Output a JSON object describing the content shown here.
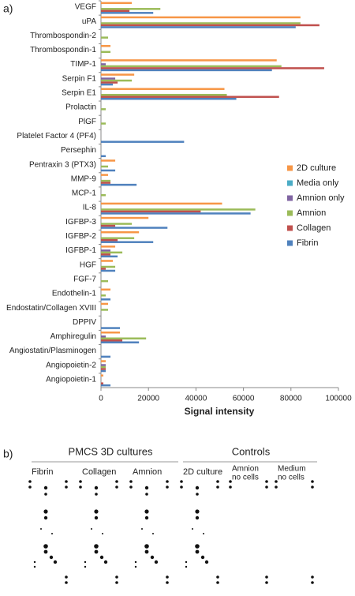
{
  "chart_data": {
    "type": "bar",
    "orientation": "horizontal",
    "panel_label": "a)",
    "x_label": "Signal intensity",
    "categories": [
      "VEGF",
      "uPA",
      "Thrombospondin-2",
      "Thrombospondin-1",
      "TIMP-1",
      "Serpin F1",
      "Serpin E1",
      "Prolactin",
      "PlGF",
      "Platelet Factor 4 (PF4)",
      "Persephin",
      "Pentraxin 3 (PTX3)",
      "MMP-9",
      "MCP-1",
      "IL-8",
      "IGFBP-3",
      "IGFBP-2",
      "IGFBP-1",
      "HGF",
      "FGF-7",
      "Endothelin-1",
      "Endostatin/Collagen XVIII",
      "DPPIV",
      "Amphiregulin",
      "Angiostatin/Plasminogen",
      "Angiopoietin-2",
      "Angiopoietin-1"
    ],
    "series": [
      {
        "name": "2D culture",
        "color": "#f79646",
        "values": [
          13000,
          84000,
          0,
          4000,
          74000,
          14000,
          52000,
          0,
          0,
          0,
          0,
          6000,
          3000,
          0,
          51000,
          20000,
          16000,
          6000,
          5000,
          0,
          4000,
          3000,
          0,
          8000,
          0,
          2000,
          1000
        ]
      },
      {
        "name": "Media only",
        "color": "#4bacc6",
        "values": [
          0,
          0,
          0,
          0,
          0,
          0,
          0,
          0,
          0,
          0,
          0,
          0,
          0,
          0,
          0,
          0,
          0,
          0,
          0,
          0,
          0,
          0,
          0,
          0,
          0,
          0,
          0
        ]
      },
      {
        "name": "Amnion only",
        "color": "#8064a2",
        "values": [
          0,
          0,
          0,
          0,
          2000,
          6000,
          0,
          0,
          0,
          0,
          0,
          0,
          0,
          0,
          0,
          0,
          0,
          4000,
          0,
          0,
          0,
          0,
          0,
          2000,
          0,
          2000,
          0
        ]
      },
      {
        "name": "Amnion",
        "color": "#9bbb59",
        "values": [
          25000,
          84000,
          3000,
          4000,
          76000,
          13000,
          53000,
          2000,
          2000,
          0,
          0,
          3000,
          4000,
          2000,
          65000,
          13000,
          14000,
          9000,
          6000,
          3000,
          2000,
          3000,
          0,
          19000,
          0,
          2000,
          0
        ]
      },
      {
        "name": "Collagen",
        "color": "#c0504d",
        "values": [
          12000,
          92000,
          0,
          0,
          94000,
          7000,
          75000,
          0,
          0,
          0,
          0,
          0,
          4000,
          0,
          42000,
          6000,
          7000,
          4000,
          2000,
          0,
          0,
          0,
          0,
          9000,
          0,
          2000,
          1000
        ]
      },
      {
        "name": "Fibrin",
        "color": "#4f81bd",
        "values": [
          22000,
          82000,
          0,
          0,
          72000,
          5000,
          57000,
          0,
          0,
          35000,
          2000,
          6000,
          15000,
          0,
          63000,
          28000,
          22000,
          7000,
          6000,
          0,
          4000,
          0,
          8000,
          16000,
          4000,
          2000,
          4000
        ]
      }
    ],
    "xlim": [
      0,
      100000
    ],
    "xticks": [
      0,
      20000,
      40000,
      60000,
      80000,
      100000
    ],
    "grid": false,
    "legend": "right"
  },
  "blot": {
    "panel_label": "b)",
    "groups": [
      "PMCS 3D cultures",
      "Controls"
    ],
    "columns": [
      [
        "Fibrin"
      ],
      [
        "Collagen"
      ],
      [
        "Amnion"
      ],
      [
        "2D culture"
      ],
      [
        "Amnion",
        "no cells"
      ],
      [
        "Medium",
        "no cells"
      ]
    ]
  }
}
